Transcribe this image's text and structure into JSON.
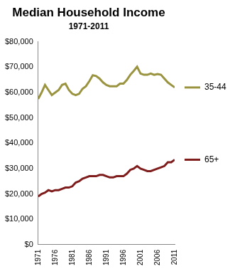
{
  "chart_data": {
    "type": "line",
    "title": "Median Household Income",
    "subtitle": "1971-2011",
    "x": [
      1971,
      1972,
      1973,
      1974,
      1975,
      1976,
      1977,
      1978,
      1979,
      1980,
      1981,
      1982,
      1983,
      1984,
      1985,
      1986,
      1987,
      1988,
      1989,
      1990,
      1991,
      1992,
      1993,
      1994,
      1995,
      1996,
      1997,
      1998,
      1999,
      2000,
      2001,
      2002,
      2003,
      2004,
      2005,
      2006,
      2007,
      2008,
      2009,
      2010,
      2011
    ],
    "series": [
      {
        "name": "35-44",
        "color": "#9a9440",
        "values": [
          57500,
          60000,
          63000,
          61000,
          59000,
          60000,
          61000,
          63000,
          63500,
          61000,
          59500,
          59000,
          59500,
          61500,
          62500,
          64500,
          66800,
          66500,
          65500,
          64000,
          63000,
          62500,
          62500,
          62500,
          63500,
          63500,
          65000,
          67000,
          68500,
          70200,
          67500,
          67000,
          67000,
          67500,
          67000,
          67300,
          67000,
          65500,
          64000,
          63000,
          62000
        ]
      },
      {
        "name": "65+",
        "color": "#7f1d1d",
        "values": [
          19000,
          20000,
          20500,
          21500,
          21000,
          21500,
          21500,
          22000,
          22500,
          22500,
          23000,
          24500,
          25000,
          26000,
          26500,
          27000,
          27000,
          27000,
          27500,
          27500,
          27000,
          26500,
          26500,
          27000,
          27000,
          27000,
          28000,
          29500,
          30000,
          31000,
          30000,
          29500,
          29000,
          29000,
          29500,
          30000,
          30500,
          31000,
          32500,
          32500,
          33500
        ]
      }
    ],
    "xlim": [
      1971,
      2011
    ],
    "xticks": [
      1971,
      1976,
      1981,
      1986,
      1991,
      1996,
      2001,
      2006,
      2011
    ],
    "ylim": [
      0,
      80000
    ],
    "yticks": [
      {
        "value": 0,
        "label": "$0"
      },
      {
        "value": 10000,
        "label": "$10,000"
      },
      {
        "value": 20000,
        "label": "$20,000"
      },
      {
        "value": 30000,
        "label": "$30,000"
      },
      {
        "value": 40000,
        "label": "$40,000"
      },
      {
        "value": 50000,
        "label": "$50,000"
      },
      {
        "value": 60000,
        "label": "$60,000"
      },
      {
        "value": 70000,
        "label": "$70,000"
      },
      {
        "value": 80000,
        "label": "$80,000"
      }
    ],
    "grid": false,
    "legend": "right"
  }
}
